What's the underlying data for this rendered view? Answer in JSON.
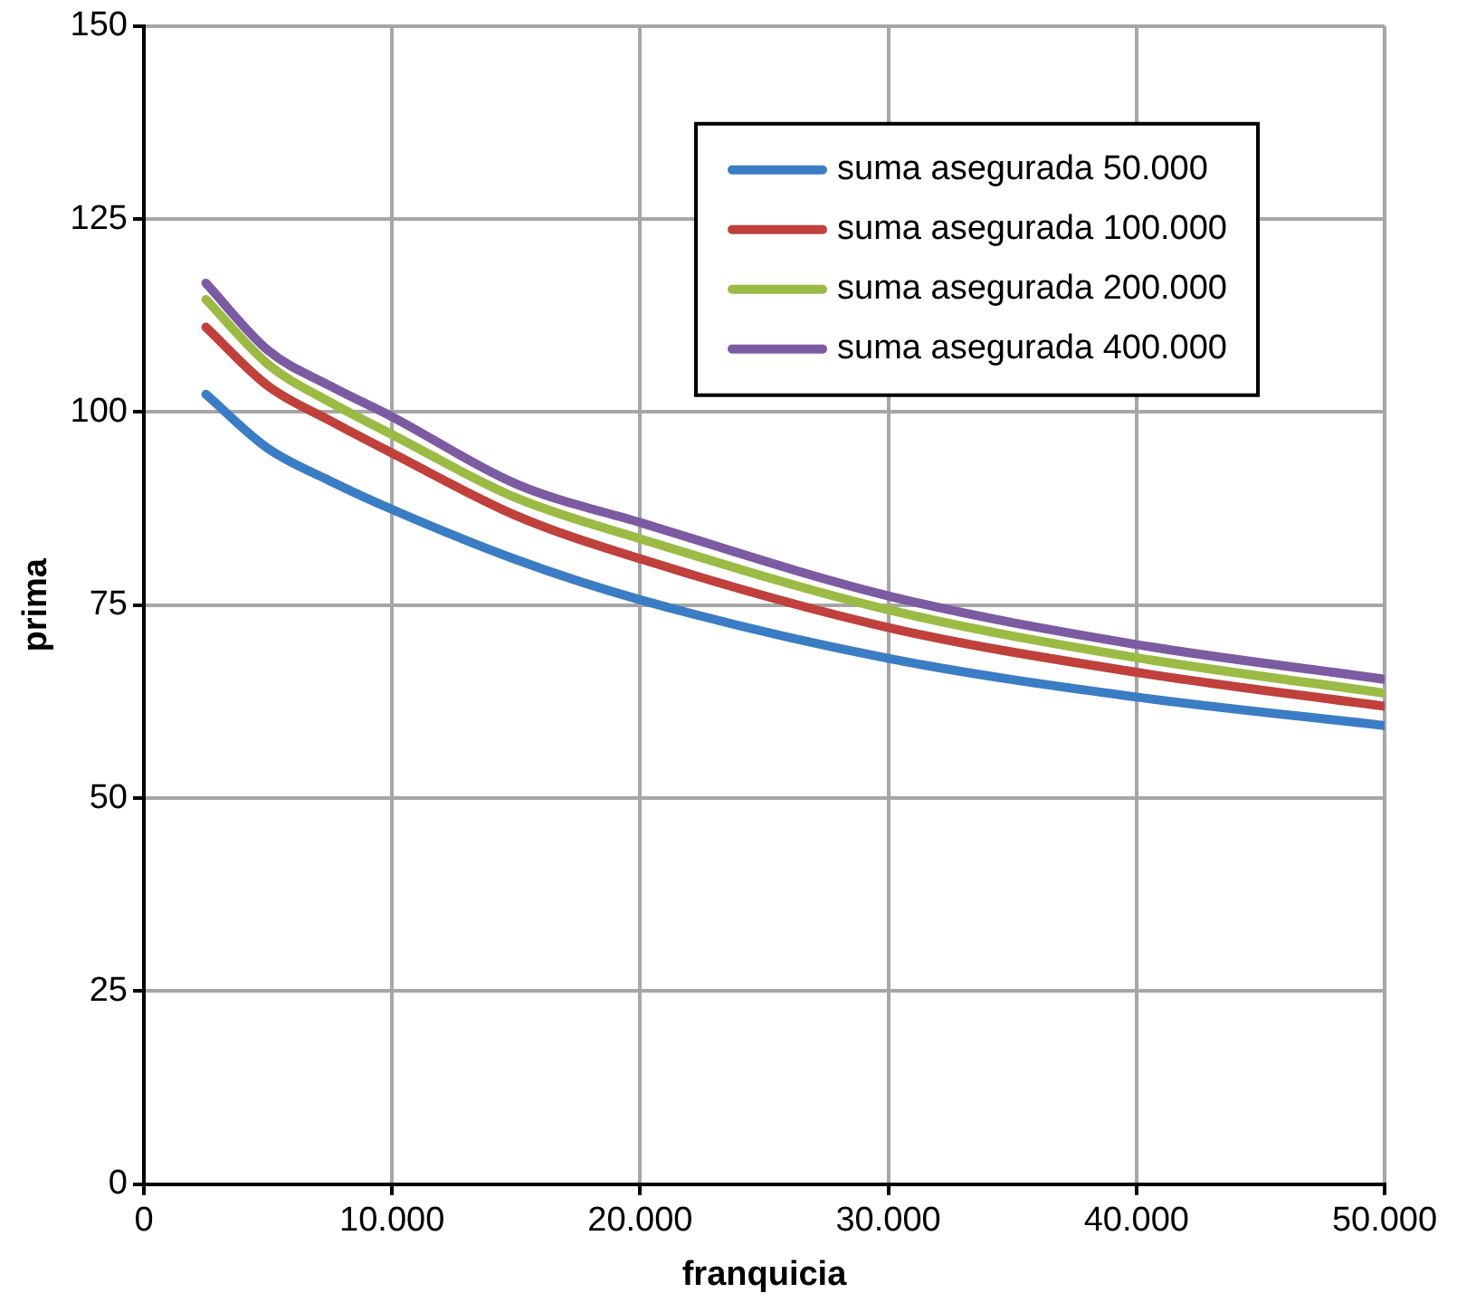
{
  "chart_data": {
    "type": "line",
    "xlabel": "franquicia",
    "ylabel": "prima",
    "x": [
      2500,
      5000,
      7500,
      10000,
      15000,
      20000,
      30000,
      40000,
      50000
    ],
    "series": [
      {
        "name": "suma asegurada 50.000",
        "color": "#3b7dc4",
        "values": [
          102.3,
          95.3,
          91.1,
          87.4,
          80.9,
          75.7,
          68.1,
          63.1,
          59.4
        ]
      },
      {
        "name": "suma asegurada 100.000",
        "color": "#c0403c",
        "values": [
          111,
          103.4,
          98.9,
          94.7,
          86.6,
          81,
          72.1,
          66.3,
          61.9
        ]
      },
      {
        "name": "suma asegurada 200.000",
        "color": "#9bbb45",
        "values": [
          114.6,
          106.2,
          101.3,
          97.1,
          88.9,
          83.6,
          74.4,
          68.2,
          63.6
        ]
      },
      {
        "name": "suma asegurada 400.000",
        "color": "#7c5ba3",
        "values": [
          116.7,
          108,
          103.4,
          99.4,
          90.7,
          85.7,
          76.2,
          69.9,
          65.4
        ]
      }
    ],
    "xlim": [
      0,
      50000
    ],
    "xticks": [
      0,
      {
        "value": 10000,
        "label": "10.000"
      },
      {
        "value": 20000,
        "label": "20.000"
      },
      {
        "value": 30000,
        "label": "30.000"
      },
      {
        "value": 40000,
        "label": "40.000"
      },
      {
        "value": 50000,
        "label": "50.000"
      }
    ],
    "ylim": [
      0,
      150
    ],
    "yticks": [
      0,
      25,
      50,
      75,
      100,
      125,
      150
    ],
    "grid": true,
    "legend": "top right",
    "marker": "none",
    "line_style": "solid"
  }
}
